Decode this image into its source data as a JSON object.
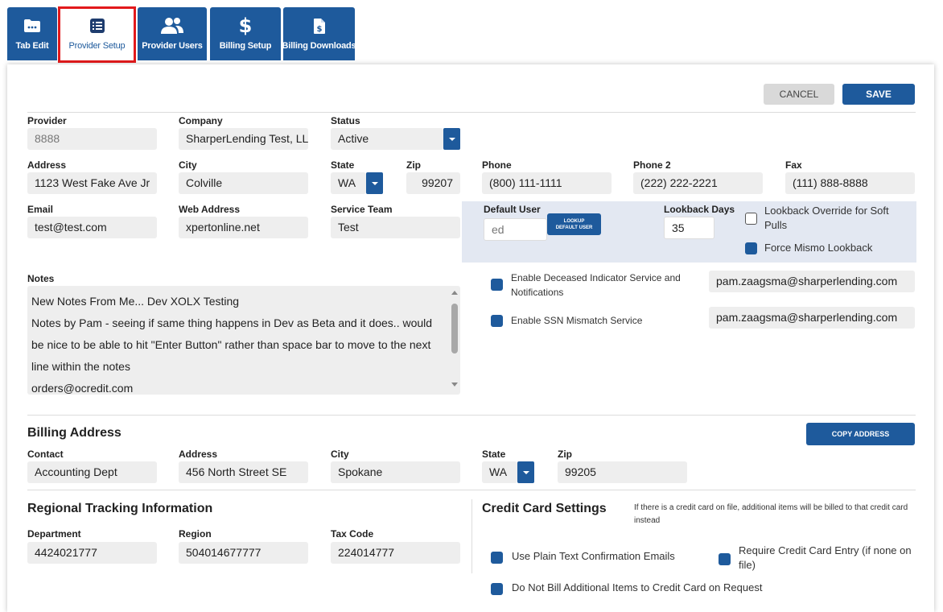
{
  "tabs": [
    {
      "label": "Tab Edit",
      "icon": "folder-icon"
    },
    {
      "label": "Provider Setup",
      "icon": "list-icon"
    },
    {
      "label": "Provider Users",
      "icon": "users-icon"
    },
    {
      "label": "Billing Setup",
      "icon": "dollar-icon"
    },
    {
      "label": "Billing Downloads",
      "icon": "document-dollar-icon"
    }
  ],
  "actions": {
    "cancel": "CANCEL",
    "save": "SAVE"
  },
  "provider": {
    "provider_label": "Provider",
    "provider_value": "8888",
    "company_label": "Company",
    "company_value": "SharperLending Test, LLC",
    "status_label": "Status",
    "status_value": "Active",
    "address_label": "Address",
    "address_value": "1123 West Fake Ave Jr",
    "city_label": "City",
    "city_value": "Colville",
    "state_label": "State",
    "state_value": "WA",
    "zip_label": "Zip",
    "zip_value": "99207",
    "phone_label": "Phone",
    "phone_value": "(800) 111-1111",
    "phone2_label": "Phone 2",
    "phone2_value": "(222) 222-2221",
    "fax_label": "Fax",
    "fax_value": "(111) 888-8888",
    "email_label": "Email",
    "email_value": "test@test.com",
    "web_label": "Web Address",
    "web_value": "xpertonline.net",
    "team_label": "Service Team",
    "team_value": "Test"
  },
  "default_user": {
    "label": "Default User",
    "value": "ed",
    "lookup_button": "LOOKUP DEFAULT USER",
    "lookback_label": "Lookback Days",
    "lookback_value": "35",
    "override_label": "Lookback Override for Soft Pulls",
    "override_checked": false,
    "force_label": "Force Mismo Lookback",
    "force_checked": true
  },
  "notes": {
    "label": "Notes",
    "lines": [
      "New Notes From Me... Dev XOLX Testing",
      "Notes by Pam - seeing if same thing happens in Dev as Beta and it does.. would",
      "be nice to be able to hit \"Enter Button\" rather than space bar to move to the next",
      "line within the notes",
      "orders@ocredit.com"
    ]
  },
  "services": {
    "deceased_label": "Enable Deceased Indicator Service and Notifications",
    "deceased_email": "pam.zaagsma@sharperlending.com",
    "ssn_label": "Enable SSN Mismatch Service",
    "ssn_email": "pam.zaagsma@sharperlending.com"
  },
  "billing": {
    "title": "Billing Address",
    "copy_button": "COPY ADDRESS",
    "contact_label": "Contact",
    "contact_value": "Accounting Dept",
    "address_label": "Address",
    "address_value": "456 North Street SE",
    "city_label": "City",
    "city_value": "Spokane",
    "state_label": "State",
    "state_value": "WA",
    "zip_label": "Zip",
    "zip_value": "99205"
  },
  "regional": {
    "title": "Regional Tracking Information",
    "department_label": "Department",
    "department_value": "4424021777",
    "region_label": "Region",
    "region_value": "504014677777",
    "tax_label": "Tax Code",
    "tax_value": "224014777"
  },
  "credit_card": {
    "title": "Credit Card Settings",
    "note": "If there is a credit card on file, additional items will be billed to that credit card instead",
    "plain_text_label": "Use Plain Text Confirmation Emails",
    "require_label": "Require Credit Card Entry (if none on file)",
    "do_not_bill_label": "Do Not Bill Additional Items to Credit Card on Request"
  },
  "colors": {
    "primary": "#1e5a9c",
    "active_tab_border": "#e2191b",
    "field_bg": "#eeeeee",
    "highlight_bg": "#e3e8f2"
  }
}
